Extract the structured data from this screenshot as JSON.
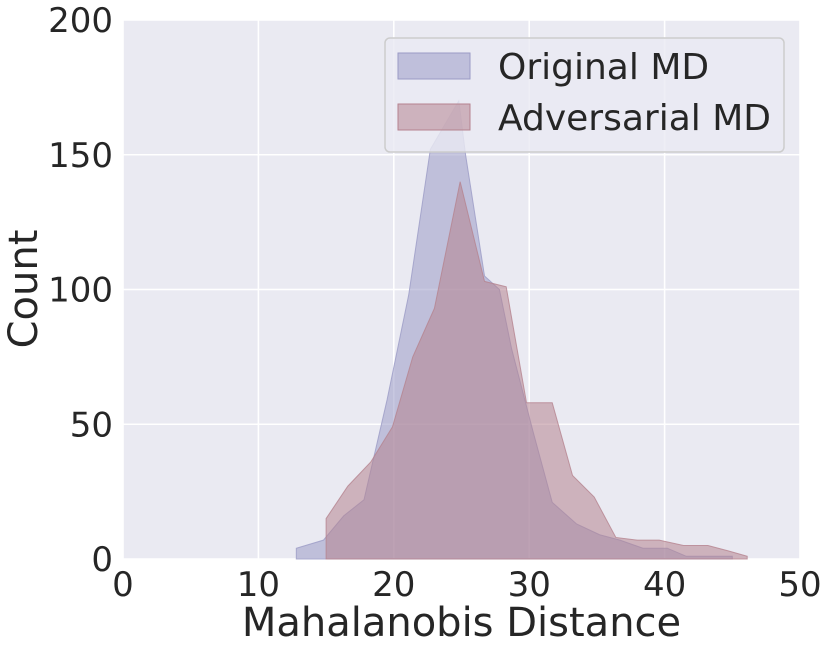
{
  "chart_data": {
    "type": "area",
    "xlabel": "Mahalanobis Distance",
    "ylabel": "Count",
    "xlim": [
      0,
      50
    ],
    "ylim": [
      0,
      200
    ],
    "xticks": [
      0,
      10,
      20,
      30,
      40,
      50
    ],
    "yticks": [
      0,
      50,
      100,
      150,
      200
    ],
    "grid": true,
    "legend_position": "top-right",
    "series": [
      {
        "name": "Original MD",
        "color": "#9b9bc6",
        "points": [
          [
            12.8,
            4
          ],
          [
            14.8,
            7
          ],
          [
            16.3,
            16
          ],
          [
            17.8,
            22
          ],
          [
            19.5,
            59
          ],
          [
            21.1,
            98
          ],
          [
            22.7,
            152
          ],
          [
            24.8,
            170
          ],
          [
            25.3,
            150
          ],
          [
            26.7,
            105
          ],
          [
            27.8,
            100
          ],
          [
            28.7,
            78
          ],
          [
            30.3,
            47
          ],
          [
            31.7,
            21
          ],
          [
            33.5,
            13
          ],
          [
            35.2,
            9
          ],
          [
            36.7,
            7
          ],
          [
            38.4,
            4
          ],
          [
            40.2,
            4
          ],
          [
            41.6,
            1
          ],
          [
            43.5,
            1
          ],
          [
            45.0,
            1
          ]
        ]
      },
      {
        "name": "Adversarial MD",
        "color": "#b5838f",
        "points": [
          [
            15.0,
            15
          ],
          [
            16.6,
            27
          ],
          [
            18.3,
            36
          ],
          [
            19.9,
            49
          ],
          [
            21.4,
            75
          ],
          [
            23.0,
            93
          ],
          [
            24.9,
            140
          ],
          [
            26.7,
            103
          ],
          [
            28.3,
            101
          ],
          [
            29.8,
            58
          ],
          [
            31.7,
            58
          ],
          [
            33.2,
            31
          ],
          [
            34.8,
            23
          ],
          [
            36.4,
            8
          ],
          [
            38.0,
            7
          ],
          [
            39.6,
            7
          ],
          [
            41.4,
            5
          ],
          [
            43.2,
            5
          ],
          [
            44.7,
            3
          ],
          [
            46.1,
            1
          ]
        ]
      }
    ]
  }
}
